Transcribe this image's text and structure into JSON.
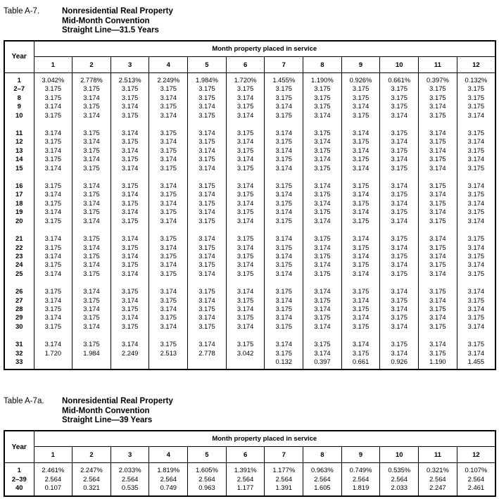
{
  "document": {
    "background": "#ffffff",
    "text_color": "#000000"
  },
  "tables": [
    {
      "label": "Table A-7.",
      "title_lines": [
        "Nonresidential Real Property",
        "Mid-Month Convention",
        "Straight Line—31.5 Years"
      ],
      "year_header": "Year",
      "month_header": "Month property placed in service",
      "month_columns": [
        "1",
        "2",
        "3",
        "4",
        "5",
        "6",
        "7",
        "8",
        "9",
        "10",
        "11",
        "12"
      ],
      "row_groups": [
        [
          {
            "year": "1",
            "values": [
              "3.042%",
              "2.778%",
              "2.513%",
              "2.249%",
              "1.984%",
              "1.720%",
              "1.455%",
              "1.190%",
              "0.926%",
              "0.661%",
              "0.397%",
              "0.132%"
            ]
          },
          {
            "year": "2–7",
            "values": [
              "3.175",
              "3.175",
              "3.175",
              "3.175",
              "3.175",
              "3.175",
              "3.175",
              "3.175",
              "3.175",
              "3.175",
              "3.175",
              "3.175"
            ]
          },
          {
            "year": "8",
            "values": [
              "3.175",
              "3.174",
              "3.175",
              "3.174",
              "3.175",
              "3.174",
              "3.175",
              "3.175",
              "3.175",
              "3.175",
              "3.175",
              "3.175"
            ]
          },
          {
            "year": "9",
            "values": [
              "3.174",
              "3.175",
              "3.174",
              "3.175",
              "3.174",
              "3.175",
              "3.174",
              "3.175",
              "3.174",
              "3.175",
              "3.174",
              "3.175"
            ]
          },
          {
            "year": "10",
            "values": [
              "3.175",
              "3.174",
              "3.175",
              "3.174",
              "3.175",
              "3.174",
              "3.175",
              "3.174",
              "3.175",
              "3.174",
              "3.175",
              "3.174"
            ]
          }
        ],
        [
          {
            "year": "11",
            "values": [
              "3.174",
              "3.175",
              "3.174",
              "3.175",
              "3.174",
              "3.175",
              "3.174",
              "3.175",
              "3.174",
              "3.175",
              "3.174",
              "3.175"
            ]
          },
          {
            "year": "12",
            "values": [
              "3.175",
              "3.174",
              "3.175",
              "3.174",
              "3.175",
              "3.174",
              "3.175",
              "3.174",
              "3.175",
              "3.174",
              "3.175",
              "3.174"
            ]
          },
          {
            "year": "13",
            "values": [
              "3.174",
              "3.175",
              "3.174",
              "3.175",
              "3.174",
              "3.175",
              "3.174",
              "3.175",
              "3.174",
              "3.175",
              "3.174",
              "3.175"
            ]
          },
          {
            "year": "14",
            "values": [
              "3.175",
              "3.174",
              "3.175",
              "3.174",
              "3.175",
              "3.174",
              "3.175",
              "3.174",
              "3.175",
              "3.174",
              "3.175",
              "3.174"
            ]
          },
          {
            "year": "15",
            "values": [
              "3.174",
              "3.175",
              "3.174",
              "3.175",
              "3.174",
              "3.175",
              "3.174",
              "3.175",
              "3.174",
              "3.175",
              "3.174",
              "3.175"
            ]
          }
        ],
        [
          {
            "year": "16",
            "values": [
              "3.175",
              "3.174",
              "3.175",
              "3.174",
              "3.175",
              "3.174",
              "3.175",
              "3.174",
              "3.175",
              "3.174",
              "3.175",
              "3.174"
            ]
          },
          {
            "year": "17",
            "values": [
              "3.174",
              "3.175",
              "3.174",
              "3.175",
              "3.174",
              "3.175",
              "3.174",
              "3.175",
              "3.174",
              "3.175",
              "3.174",
              "3.175"
            ]
          },
          {
            "year": "18",
            "values": [
              "3.175",
              "3.174",
              "3.175",
              "3.174",
              "3.175",
              "3.174",
              "3.175",
              "3.174",
              "3.175",
              "3.174",
              "3.175",
              "3.174"
            ]
          },
          {
            "year": "19",
            "values": [
              "3.174",
              "3.175",
              "3.174",
              "3.175",
              "3.174",
              "3.175",
              "3.174",
              "3.175",
              "3.174",
              "3.175",
              "3.174",
              "3.175"
            ]
          },
          {
            "year": "20",
            "values": [
              "3.175",
              "3.174",
              "3.175",
              "3.174",
              "3.175",
              "3.174",
              "3.175",
              "3.174",
              "3.175",
              "3.174",
              "3.175",
              "3.174"
            ]
          }
        ],
        [
          {
            "year": "21",
            "values": [
              "3.174",
              "3.175",
              "3.174",
              "3.175",
              "3.174",
              "3.175",
              "3.174",
              "3.175",
              "3.174",
              "3.175",
              "3.174",
              "3.175"
            ]
          },
          {
            "year": "22",
            "values": [
              "3.175",
              "3.174",
              "3.175",
              "3.174",
              "3.175",
              "3.174",
              "3.175",
              "3.174",
              "3.175",
              "3.174",
              "3.175",
              "3.174"
            ]
          },
          {
            "year": "23",
            "values": [
              "3.174",
              "3.175",
              "3.174",
              "3.175",
              "3.174",
              "3.175",
              "3.174",
              "3.175",
              "3.174",
              "3.175",
              "3.174",
              "3.175"
            ]
          },
          {
            "year": "24",
            "values": [
              "3.175",
              "3.174",
              "3.175",
              "3.174",
              "3.175",
              "3.174",
              "3.175",
              "3.174",
              "3.175",
              "3.174",
              "3.175",
              "3.174"
            ]
          },
          {
            "year": "25",
            "values": [
              "3.174",
              "3.175",
              "3.174",
              "3.175",
              "3.174",
              "3.175",
              "3.174",
              "3.175",
              "3.174",
              "3.175",
              "3.174",
              "3.175"
            ]
          }
        ],
        [
          {
            "year": "26",
            "values": [
              "3.175",
              "3.174",
              "3.175",
              "3.174",
              "3.175",
              "3.174",
              "3.175",
              "3.174",
              "3.175",
              "3.174",
              "3.175",
              "3.174"
            ]
          },
          {
            "year": "27",
            "values": [
              "3.174",
              "3.175",
              "3.174",
              "3.175",
              "3.174",
              "3.175",
              "3.174",
              "3.175",
              "3.174",
              "3.175",
              "3.174",
              "3.175"
            ]
          },
          {
            "year": "28",
            "values": [
              "3.175",
              "3.174",
              "3.175",
              "3.174",
              "3.175",
              "3.174",
              "3.175",
              "3.174",
              "3.175",
              "3.174",
              "3.175",
              "3.174"
            ]
          },
          {
            "year": "29",
            "values": [
              "3.174",
              "3.175",
              "3.174",
              "3.175",
              "3.174",
              "3.175",
              "3.174",
              "3.175",
              "3.174",
              "3.175",
              "3.174",
              "3.175"
            ]
          },
          {
            "year": "30",
            "values": [
              "3.175",
              "3.174",
              "3.175",
              "3.174",
              "3.175",
              "3.174",
              "3.175",
              "3.174",
              "3.175",
              "3.174",
              "3.175",
              "3.174"
            ]
          }
        ],
        [
          {
            "year": "31",
            "values": [
              "3.174",
              "3.175",
              "3.174",
              "3.175",
              "3.174",
              "3.175",
              "3.174",
              "3.175",
              "3.174",
              "3.175",
              "3.174",
              "3.175"
            ]
          },
          {
            "year": "32",
            "values": [
              "1.720",
              "1.984",
              "2.249",
              "2.513",
              "2.778",
              "3.042",
              "3.175",
              "3.174",
              "3.175",
              "3.174",
              "3.175",
              "3.174"
            ]
          },
          {
            "year": "33",
            "values": [
              "",
              "",
              "",
              "",
              "",
              "",
              "0.132",
              "0.397",
              "0.661",
              "0.926",
              "1.190",
              "1.455"
            ]
          }
        ]
      ]
    },
    {
      "label": "Table A-7a.",
      "title_lines": [
        "Nonresidential Real Property",
        "Mid-Month Convention",
        "Straight Line—39 Years"
      ],
      "year_header": "Year",
      "month_header": "Month property placed in service",
      "month_columns": [
        "1",
        "2",
        "3",
        "4",
        "5",
        "6",
        "7",
        "8",
        "9",
        "10",
        "11",
        "12"
      ],
      "row_groups": [
        [
          {
            "year": "1",
            "values": [
              "2.461%",
              "2.247%",
              "2.033%",
              "1.819%",
              "1.605%",
              "1.391%",
              "1.177%",
              "0.963%",
              "0.749%",
              "0.535%",
              "0.321%",
              "0.107%"
            ]
          },
          {
            "year": "2–39",
            "values": [
              "2.564",
              "2.564",
              "2.564",
              "2.564",
              "2.564",
              "2.564",
              "2.564",
              "2.564",
              "2.564",
              "2.564",
              "2.564",
              "2.564"
            ]
          },
          {
            "year": "40",
            "values": [
              "0.107",
              "0.321",
              "0.535",
              "0.749",
              "0.963",
              "1.177",
              "1.391",
              "1.605",
              "1.819",
              "2.033",
              "2.247",
              "2.461"
            ]
          }
        ]
      ]
    }
  ]
}
